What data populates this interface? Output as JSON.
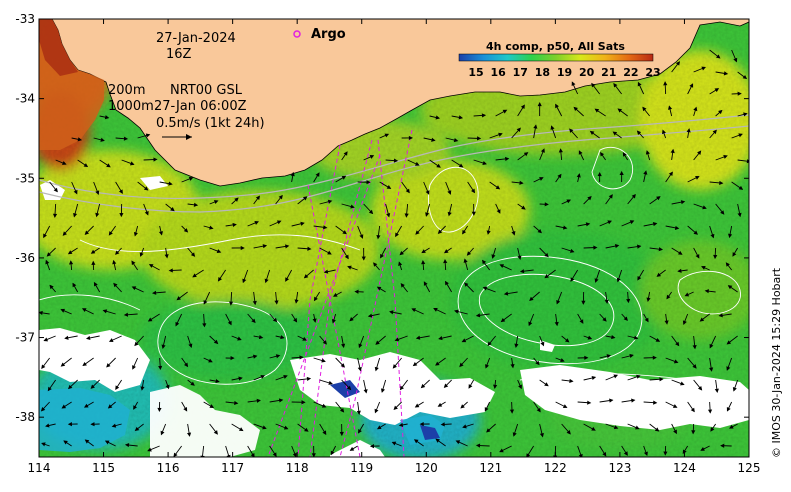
{
  "map": {
    "lon_range": [
      114,
      125
    ],
    "lat_range": [
      -38.5,
      -33
    ],
    "lon_ticks": [
      "114",
      "115",
      "116",
      "117",
      "118",
      "119",
      "120",
      "121",
      "122",
      "123",
      "124",
      "125"
    ],
    "lat_ticks": [
      "-33",
      "-34",
      "-35",
      "-36",
      "-37",
      "-38"
    ],
    "land_color": "#f9c89a",
    "missing_color": "#ffffff"
  },
  "info": {
    "date": "27-Jan-2024",
    "hour": "16Z",
    "contour_200": "200m",
    "contour_1000": "1000m",
    "current_source": "NRT00 GSL",
    "current_time": "27-Jan 06:00Z",
    "scale_label": "0.5m/s (1kt 24h)"
  },
  "legend": {
    "argo_label": "Argo",
    "argo_color": "#e020e0"
  },
  "colorbar": {
    "title": "4h comp, p50, All Sats",
    "labels": [
      "15",
      "16",
      "17",
      "18",
      "19",
      "20",
      "21",
      "22",
      "23"
    ],
    "colors": [
      "#1c3fa8",
      "#1a8fd8",
      "#20c8c8",
      "#2ed04a",
      "#7ed02a",
      "#d8e81a",
      "#f0b418",
      "#e46a14",
      "#b82a14"
    ]
  },
  "credit": "© IMOS 30-Jan-2024 15:29 Hobart"
}
